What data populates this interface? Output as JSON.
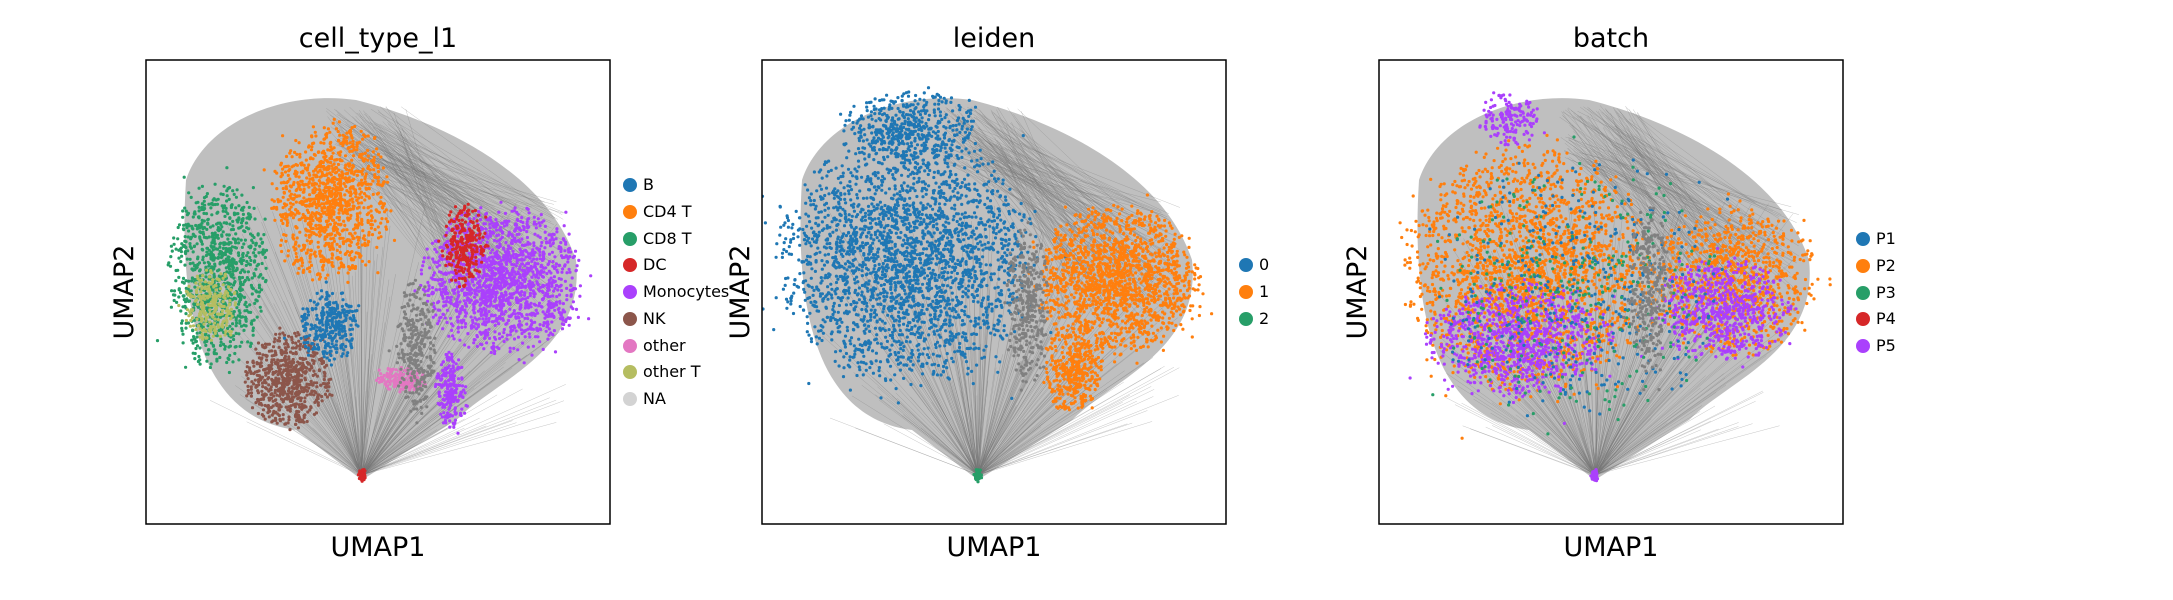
{
  "chart_data": [
    {
      "type": "scatter",
      "title": "cell_type_l1",
      "xlabel": "UMAP1",
      "ylabel": "UMAP2",
      "grid": false,
      "legend_placement": "right",
      "series": [
        {
          "name": "B",
          "color": "#1f77b4"
        },
        {
          "name": "CD4 T",
          "color": "#ff7f0e"
        },
        {
          "name": "CD8 T",
          "color": "#279e68"
        },
        {
          "name": "DC",
          "color": "#d62728"
        },
        {
          "name": "Monocytes",
          "color": "#aa40fc"
        },
        {
          "name": "NK",
          "color": "#8c564b"
        },
        {
          "name": "other",
          "color": "#e377c2"
        },
        {
          "name": "other T",
          "color": "#b5bd61"
        },
        {
          "name": "NA",
          "color": "#d3d3d3"
        }
      ]
    },
    {
      "type": "scatter",
      "title": "leiden",
      "xlabel": "UMAP1",
      "ylabel": "UMAP2",
      "grid": false,
      "legend_placement": "right",
      "series": [
        {
          "name": "0",
          "color": "#1f77b4"
        },
        {
          "name": "1",
          "color": "#ff7f0e"
        },
        {
          "name": "2",
          "color": "#279e68"
        }
      ]
    },
    {
      "type": "scatter",
      "title": "batch",
      "xlabel": "UMAP1",
      "ylabel": "UMAP2",
      "grid": false,
      "legend_placement": "right",
      "series": [
        {
          "name": "P1",
          "color": "#1f77b4"
        },
        {
          "name": "P2",
          "color": "#ff7f0e"
        },
        {
          "name": "P3",
          "color": "#279e68"
        },
        {
          "name": "P4",
          "color": "#d62728"
        },
        {
          "name": "P5",
          "color": "#aa40fc"
        }
      ]
    }
  ]
}
